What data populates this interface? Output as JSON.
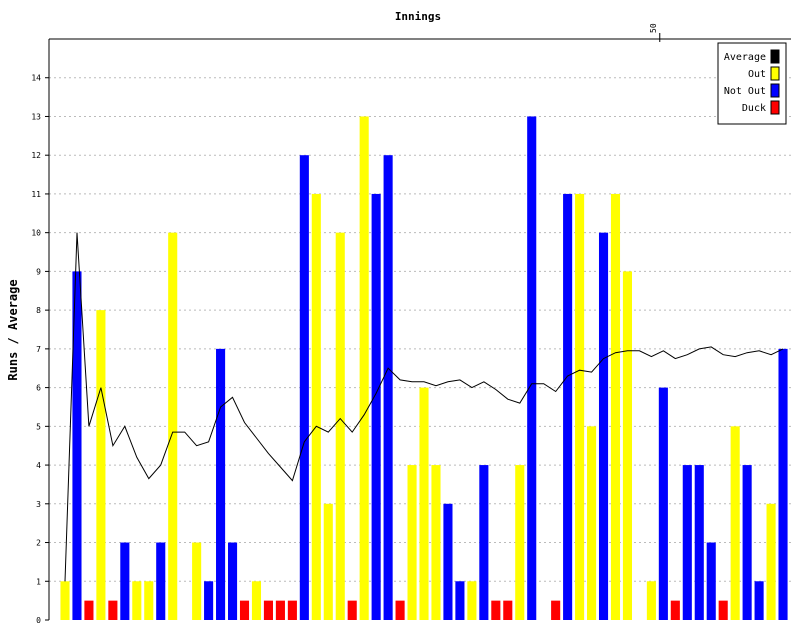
{
  "chart_data": {
    "type": "bar",
    "title": "Innings",
    "xlabel": "",
    "ylabel": "Runs / Average",
    "ylim": [
      0,
      15
    ],
    "yticks": [
      0,
      1,
      2,
      3,
      4,
      5,
      6,
      7,
      8,
      9,
      10,
      11,
      12,
      13,
      14
    ],
    "xtick_labels": [
      {
        "innings": 50,
        "label": "50"
      }
    ],
    "grid": true,
    "legend_position": "top-right",
    "colors": {
      "out": "#ffff00",
      "not_out": "#0000ff",
      "duck": "#ff0000",
      "average": "#000000"
    },
    "legend": [
      {
        "label": "Average",
        "key": "average"
      },
      {
        "label": "Out",
        "key": "out"
      },
      {
        "label": "Not Out",
        "key": "not_out"
      },
      {
        "label": "Duck",
        "key": "duck"
      }
    ],
    "innings": [
      {
        "runs": 1,
        "status": "out"
      },
      {
        "runs": 9,
        "status": "not_out"
      },
      {
        "runs": 0,
        "status": "duck"
      },
      {
        "runs": 8,
        "status": "out"
      },
      {
        "runs": 0,
        "status": "duck"
      },
      {
        "runs": 2,
        "status": "not_out"
      },
      {
        "runs": 1,
        "status": "out"
      },
      {
        "runs": 1,
        "status": "out"
      },
      {
        "runs": 2,
        "status": "not_out"
      },
      {
        "runs": 10,
        "status": "out"
      },
      {
        "runs": 0,
        "status": "none"
      },
      {
        "runs": 2,
        "status": "out"
      },
      {
        "runs": 1,
        "status": "not_out"
      },
      {
        "runs": 7,
        "status": "not_out"
      },
      {
        "runs": 2,
        "status": "not_out"
      },
      {
        "runs": 0,
        "status": "duck"
      },
      {
        "runs": 1,
        "status": "out"
      },
      {
        "runs": 0,
        "status": "duck"
      },
      {
        "runs": 0,
        "status": "duck"
      },
      {
        "runs": 0,
        "status": "duck"
      },
      {
        "runs": 12,
        "status": "not_out"
      },
      {
        "runs": 11,
        "status": "out"
      },
      {
        "runs": 3,
        "status": "out"
      },
      {
        "runs": 10,
        "status": "out"
      },
      {
        "runs": 0,
        "status": "duck"
      },
      {
        "runs": 13,
        "status": "out"
      },
      {
        "runs": 11,
        "status": "not_out"
      },
      {
        "runs": 12,
        "status": "not_out"
      },
      {
        "runs": 0,
        "status": "duck"
      },
      {
        "runs": 4,
        "status": "out"
      },
      {
        "runs": 6,
        "status": "out"
      },
      {
        "runs": 4,
        "status": "out"
      },
      {
        "runs": 3,
        "status": "not_out"
      },
      {
        "runs": 1,
        "status": "not_out"
      },
      {
        "runs": 1,
        "status": "out"
      },
      {
        "runs": 4,
        "status": "not_out"
      },
      {
        "runs": 0,
        "status": "duck"
      },
      {
        "runs": 0,
        "status": "duck"
      },
      {
        "runs": 4,
        "status": "out"
      },
      {
        "runs": 13,
        "status": "not_out"
      },
      {
        "runs": 0,
        "status": "none"
      },
      {
        "runs": 0,
        "status": "duck"
      },
      {
        "runs": 11,
        "status": "not_out"
      },
      {
        "runs": 11,
        "status": "out"
      },
      {
        "runs": 5,
        "status": "out"
      },
      {
        "runs": 10,
        "status": "not_out"
      },
      {
        "runs": 11,
        "status": "out"
      },
      {
        "runs": 9,
        "status": "out"
      },
      {
        "runs": 0,
        "status": "none"
      },
      {
        "runs": 1,
        "status": "out"
      },
      {
        "runs": 6,
        "status": "not_out"
      },
      {
        "runs": 0,
        "status": "duck"
      },
      {
        "runs": 4,
        "status": "not_out"
      },
      {
        "runs": 4,
        "status": "not_out"
      },
      {
        "runs": 2,
        "status": "not_out"
      },
      {
        "runs": 0,
        "status": "duck"
      },
      {
        "runs": 5,
        "status": "out"
      },
      {
        "runs": 4,
        "status": "not_out"
      },
      {
        "runs": 1,
        "status": "not_out"
      },
      {
        "runs": 3,
        "status": "out"
      },
      {
        "runs": 7,
        "status": "not_out"
      }
    ],
    "average": [
      1,
      10,
      5,
      6,
      4.5,
      5,
      4.2,
      3.65,
      4,
      4.85,
      4.85,
      4.5,
      4.6,
      5.5,
      5.75,
      5.1,
      4.7,
      4.3,
      3.95,
      3.6,
      4.6,
      5,
      4.85,
      5.2,
      4.85,
      5.3,
      5.85,
      6.5,
      6.2,
      6.15,
      6.15,
      6.05,
      6.15,
      6.2,
      6,
      6.15,
      5.95,
      5.7,
      5.6,
      6.1,
      6.1,
      5.9,
      6.3,
      6.45,
      6.4,
      6.75,
      6.9,
      6.95,
      6.95,
      6.8,
      6.95,
      6.75,
      6.85,
      7,
      7.05,
      6.85,
      6.8,
      6.9,
      6.95,
      6.85,
      7
    ]
  }
}
